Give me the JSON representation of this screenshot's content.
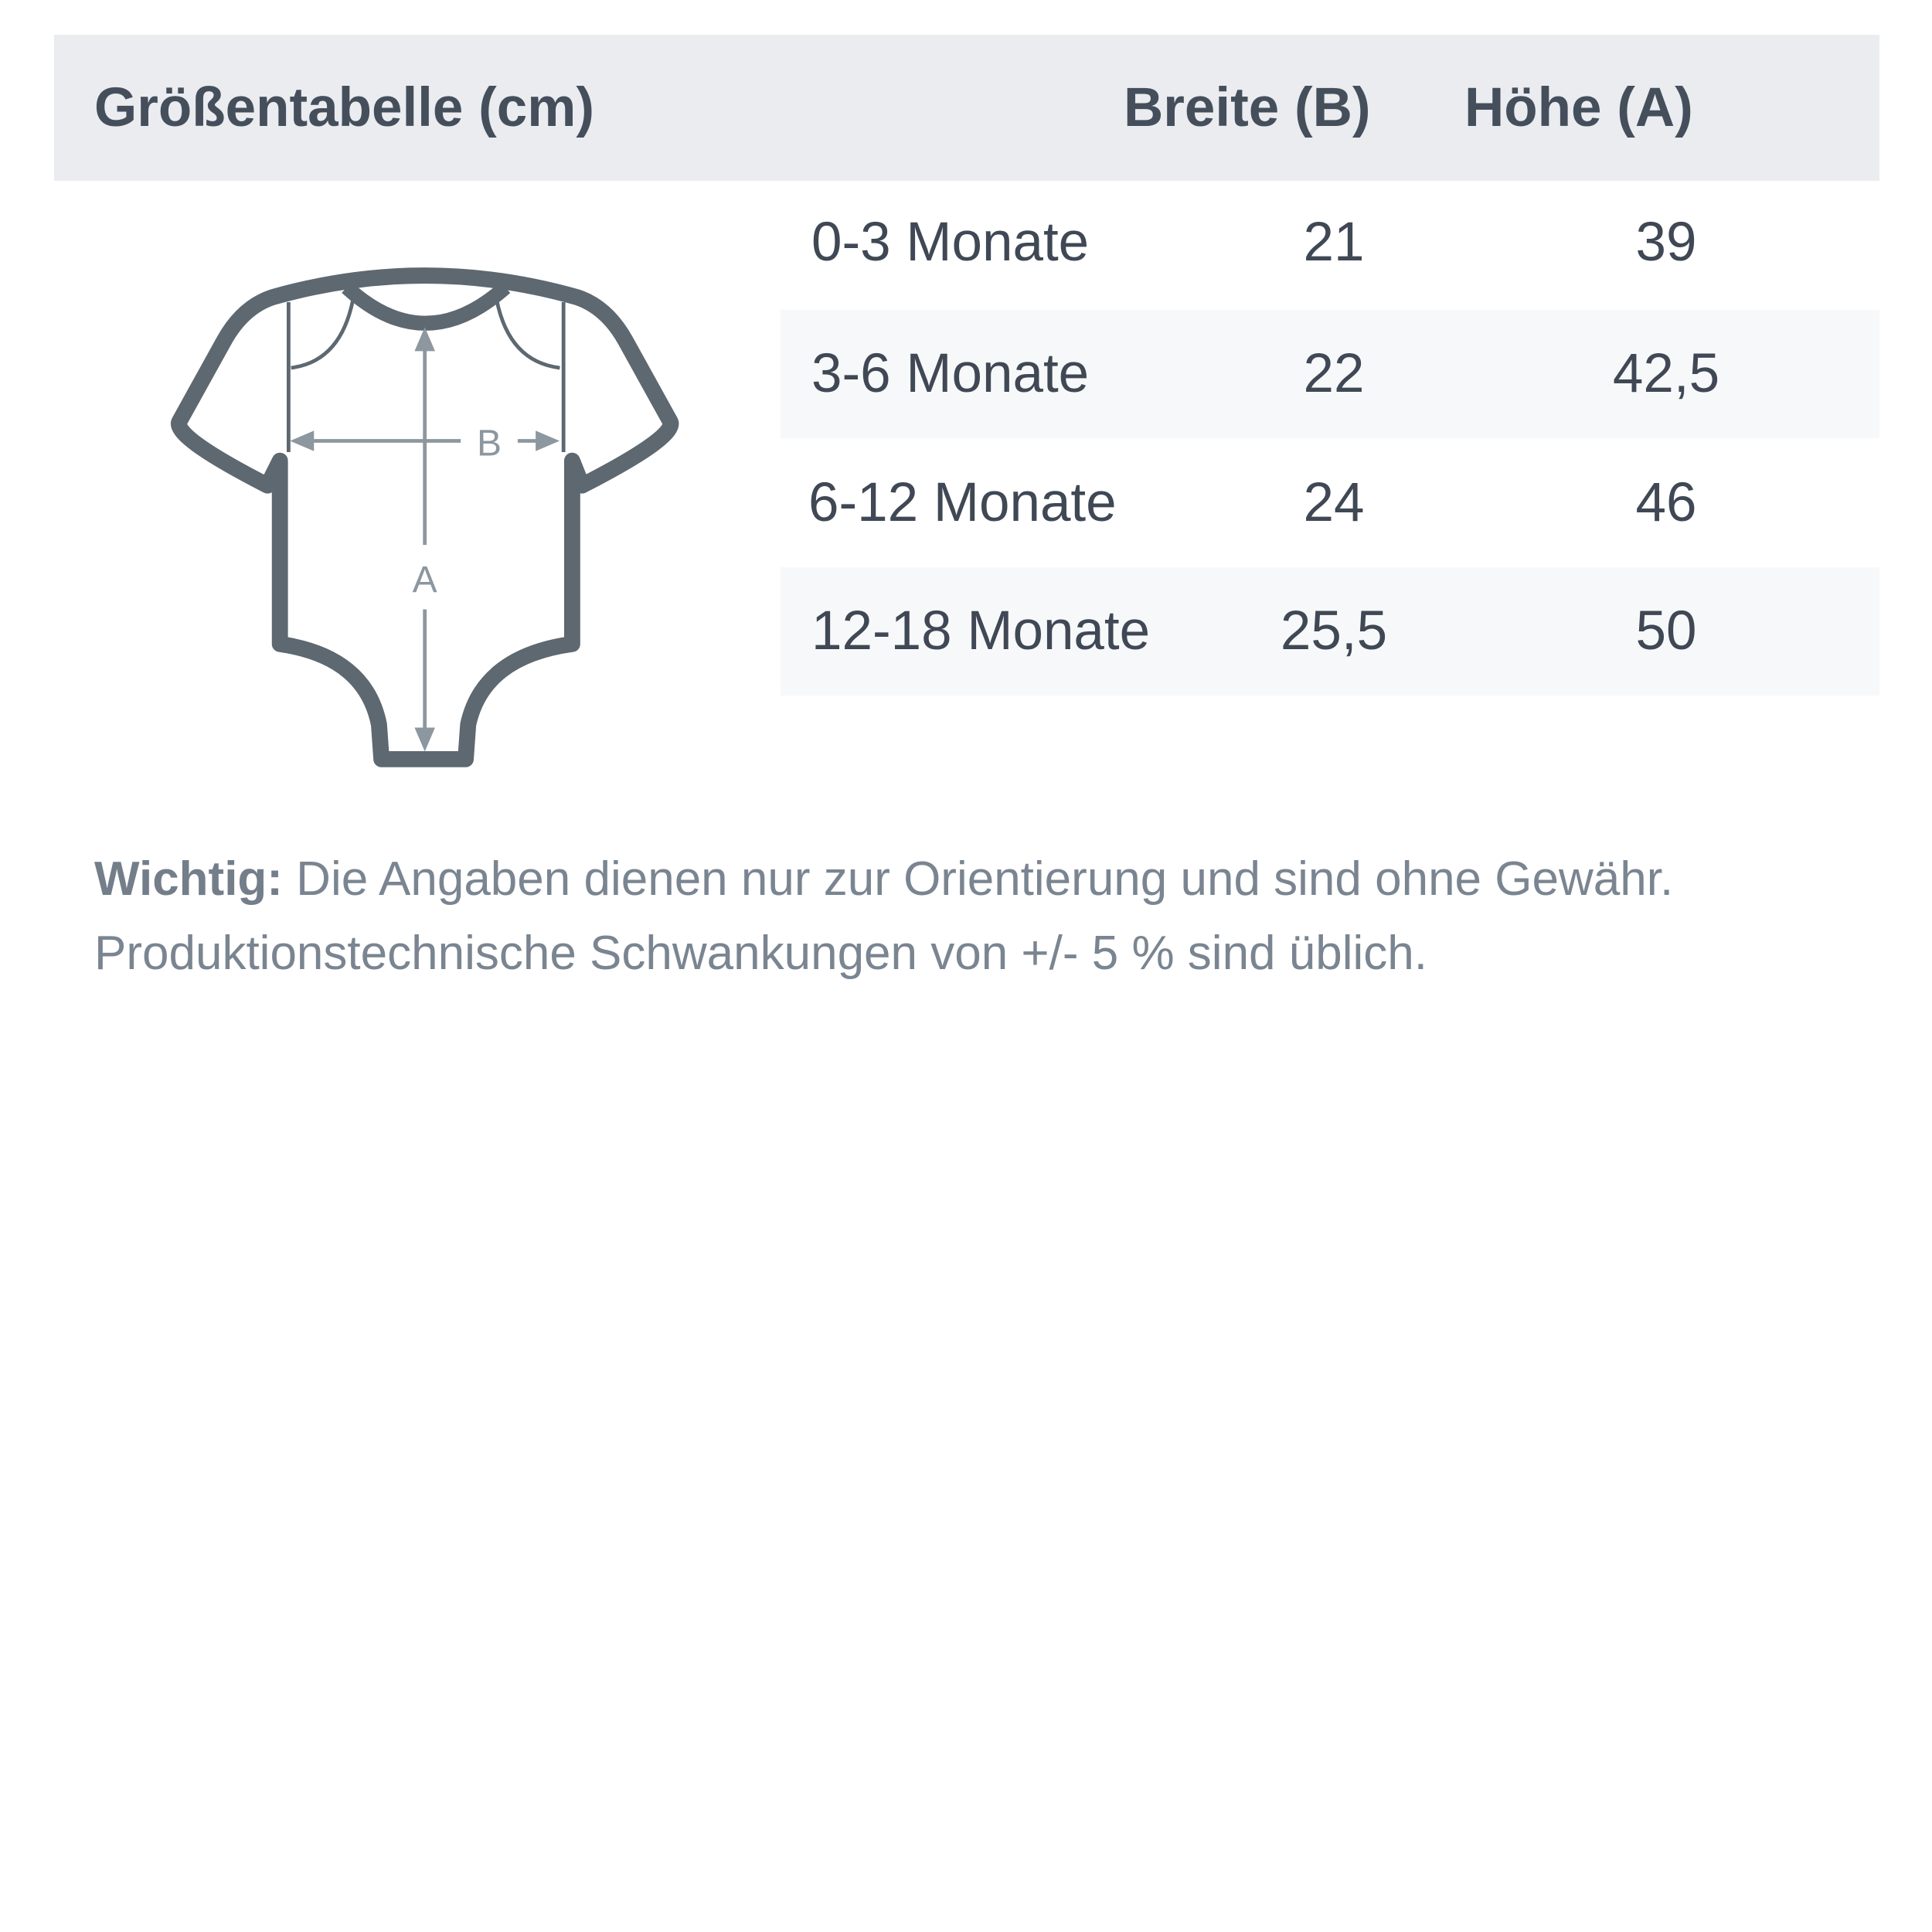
{
  "header": {
    "title": "Größentabelle (cm)",
    "col_width": "Breite (B)",
    "col_height": "Höhe (A)"
  },
  "rows": [
    {
      "size": "0-3 Monate",
      "width": "21",
      "height": "39"
    },
    {
      "size": "3-6 Monate",
      "width": "22",
      "height": "42,5"
    },
    {
      "size": "6-12 Monate",
      "width": "24",
      "height": "46"
    },
    {
      "size": "12-18 Monate",
      "width": "25,5",
      "height": "50"
    }
  ],
  "diagram": {
    "label_b": "B",
    "label_a": "A",
    "icon": "baby-bodysuit-icon"
  },
  "note": {
    "bold": "Wichtig:",
    "line1": " Die Angaben dienen nur zur Orientierung und sind ohne Gewähr.",
    "line2": "Produktionstechnische Schwankungen von +/- 5 % sind üblich."
  },
  "colors": {
    "header_bg": "#eaecf0",
    "row_alt_bg": "#f7f8fa",
    "outline": "#5d6870",
    "arrow": "#8c97a0"
  }
}
